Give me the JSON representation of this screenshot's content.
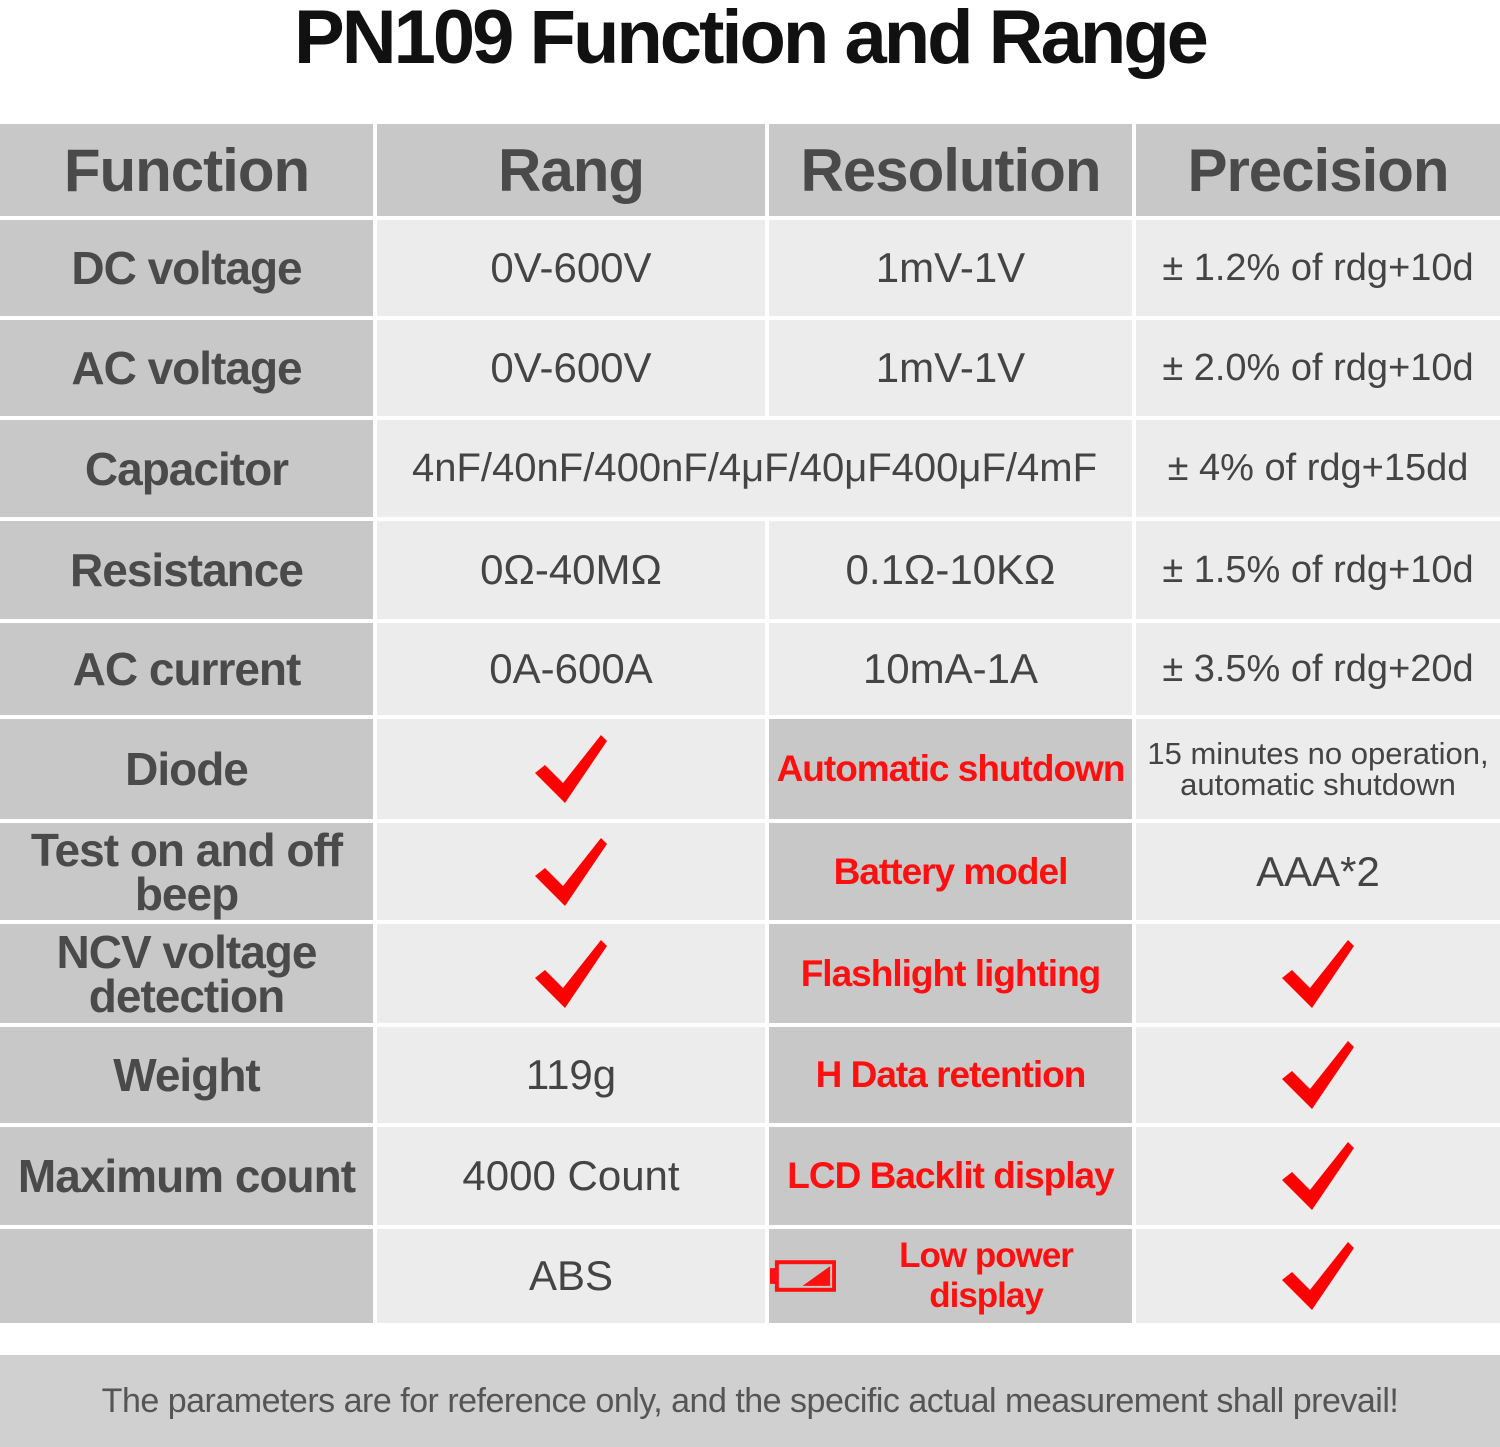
{
  "title": "PN109 Function and Range",
  "headers": [
    "Function",
    "Rang",
    "Resolution",
    "Precision"
  ],
  "rows": [
    {
      "function": "DC voltage",
      "range": "0V-600V",
      "resolution": "1mV-1V",
      "precision": "± 1.2% of rdg+10d"
    },
    {
      "function": "AC voltage",
      "range": "0V-600V",
      "resolution": "1mV-1V",
      "precision": "± 2.0% of rdg+10d"
    },
    {
      "function": "Capacitor",
      "range": "4nF/40nF/400nF/4μF/40μF400μF/4mF",
      "precision": "± 4% of rdg+15dd"
    },
    {
      "function": "Resistance",
      "range": "0Ω-40MΩ",
      "resolution": "0.1Ω-10KΩ",
      "precision": "± 1.5% of rdg+10d"
    },
    {
      "function": "AC current",
      "range": "0A-600A",
      "resolution": "10mA-1A",
      "precision": "± 3.5% of rdg+20d"
    }
  ],
  "features_left": [
    {
      "function": "Diode",
      "supported": true
    },
    {
      "function": "Test on and off beep",
      "supported": true
    },
    {
      "function": "NCV voltage detection",
      "supported": true
    },
    {
      "function": "Weight",
      "value": "119g"
    },
    {
      "function": "Maximum count",
      "value": "4000 Count"
    },
    {
      "function": "",
      "value": "ABS"
    }
  ],
  "features_right": [
    {
      "feature": "Automatic shutdown",
      "value": "15 minutes no operation, automatic shutdown"
    },
    {
      "feature": "Battery model",
      "value": "AAA*2"
    },
    {
      "feature": "Flashlight lighting",
      "supported": true
    },
    {
      "feature": "H Data retention",
      "supported": true
    },
    {
      "feature": "LCD Backlit display",
      "supported": true
    },
    {
      "feature": "Low power display",
      "supported": true,
      "icon": "battery-low-icon"
    }
  ],
  "footer": "The parameters are for reference only, and the specific actual measurement shall prevail!",
  "colors": {
    "header_bg": "#c8c8c8",
    "value_bg": "#ececec",
    "feature_text": "#ff1010",
    "check": "#ff0000"
  }
}
